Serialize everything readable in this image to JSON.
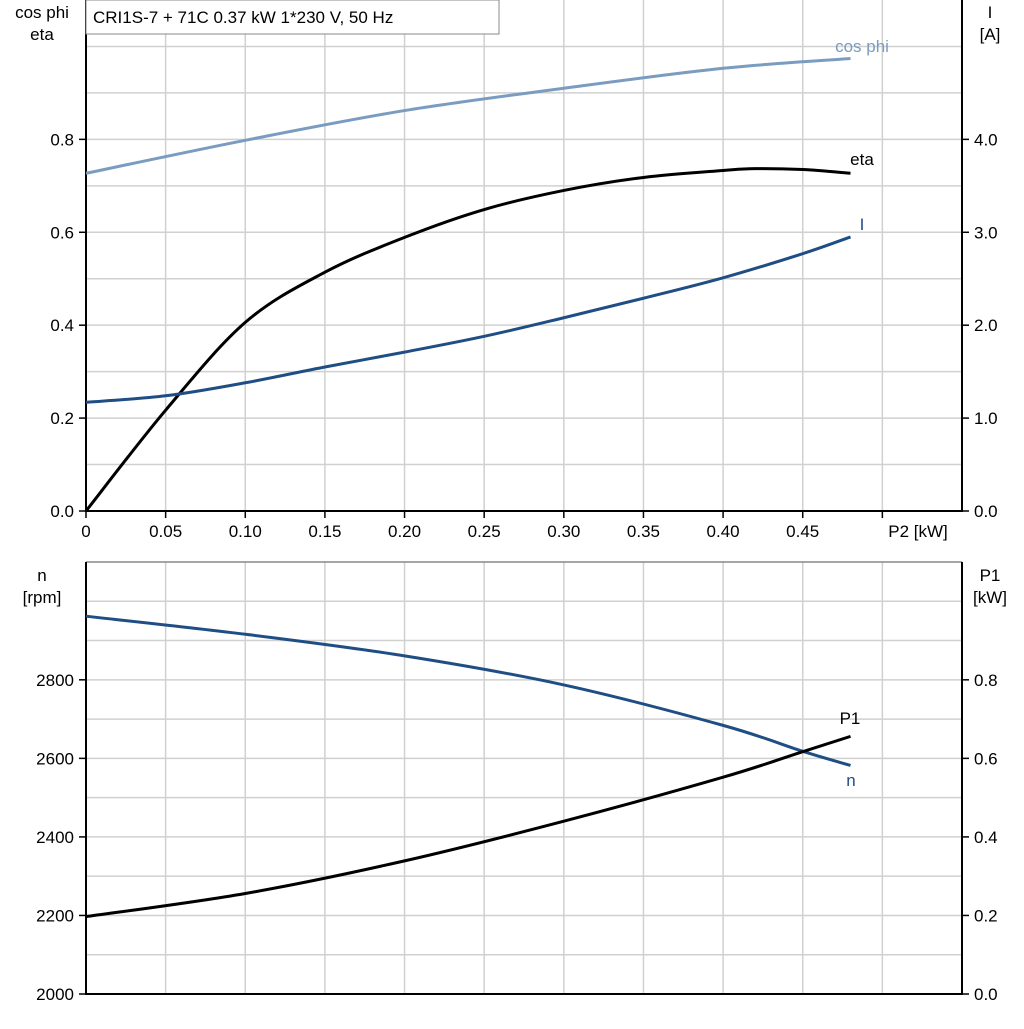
{
  "title": "CRI1S-7 + 71C   0.37 kW   1*230 V, 50 Hz",
  "chart_data": [
    {
      "type": "line",
      "title": "CRI1S-7 + 71C   0.37 kW   1*230 V, 50 Hz",
      "xlabel": "P2 [kW]",
      "ylabel_left": [
        "cos phi",
        "eta"
      ],
      "ylabel_right": [
        "I",
        "[A]"
      ],
      "xlim": [
        0,
        0.55
      ],
      "ylim_left": [
        0,
        1.1
      ],
      "ylim_right": [
        0,
        5.5
      ],
      "x_ticks": [
        "0",
        "0.05",
        "0.10",
        "0.15",
        "0.20",
        "0.25",
        "0.30",
        "0.35",
        "0.40",
        "0.45"
      ],
      "y_left_ticks": [
        "0.0",
        "0.2",
        "0.4",
        "0.6",
        "0.8"
      ],
      "y_right_ticks": [
        "0.0",
        "1.0",
        "2.0",
        "3.0",
        "4.0"
      ],
      "grid": true,
      "series": [
        {
          "name": "cos phi",
          "axis": "left",
          "color": "#7a9cc0",
          "x": [
            0,
            0.1,
            0.2,
            0.3,
            0.4,
            0.48
          ],
          "y": [
            0.727,
            0.798,
            0.862,
            0.91,
            0.953,
            0.974
          ]
        },
        {
          "name": "eta",
          "axis": "left",
          "color": "#000000",
          "x": [
            0,
            0.05,
            0.1,
            0.15,
            0.2,
            0.25,
            0.3,
            0.35,
            0.4,
            0.42,
            0.45,
            0.48
          ],
          "y": [
            0,
            0.217,
            0.406,
            0.514,
            0.589,
            0.649,
            0.69,
            0.718,
            0.733,
            0.737,
            0.735,
            0.727
          ]
        },
        {
          "name": "I",
          "axis": "right",
          "color": "#1f4e85",
          "x": [
            0,
            0.05,
            0.1,
            0.15,
            0.2,
            0.25,
            0.3,
            0.35,
            0.4,
            0.45,
            0.48
          ],
          "y": [
            1.17,
            1.24,
            1.38,
            1.55,
            1.71,
            1.88,
            2.08,
            2.29,
            2.51,
            2.77,
            2.95
          ]
        }
      ]
    },
    {
      "type": "line",
      "ylabel_left": [
        "n",
        "[rpm]"
      ],
      "ylabel_right": [
        "P1",
        "[kW]"
      ],
      "xlim": [
        0,
        0.55
      ],
      "ylim_left": [
        2000,
        3100
      ],
      "ylim_right": [
        0,
        1.1
      ],
      "y_left_ticks": [
        "2000",
        "2200",
        "2400",
        "2600",
        "2800"
      ],
      "y_right_ticks": [
        "0.0",
        "0.2",
        "0.4",
        "0.6",
        "0.8"
      ],
      "grid": true,
      "series": [
        {
          "name": "n",
          "axis": "left",
          "color": "#1f4e85",
          "x": [
            0,
            0.1,
            0.2,
            0.3,
            0.4,
            0.45,
            0.48
          ],
          "y": [
            2962,
            2916,
            2861,
            2787,
            2684,
            2618,
            2582
          ]
        },
        {
          "name": "P1",
          "axis": "right",
          "color": "#000000",
          "x": [
            0,
            0.1,
            0.2,
            0.3,
            0.4,
            0.45,
            0.48
          ],
          "y": [
            0.197,
            0.256,
            0.339,
            0.44,
            0.552,
            0.617,
            0.656
          ]
        }
      ]
    }
  ]
}
